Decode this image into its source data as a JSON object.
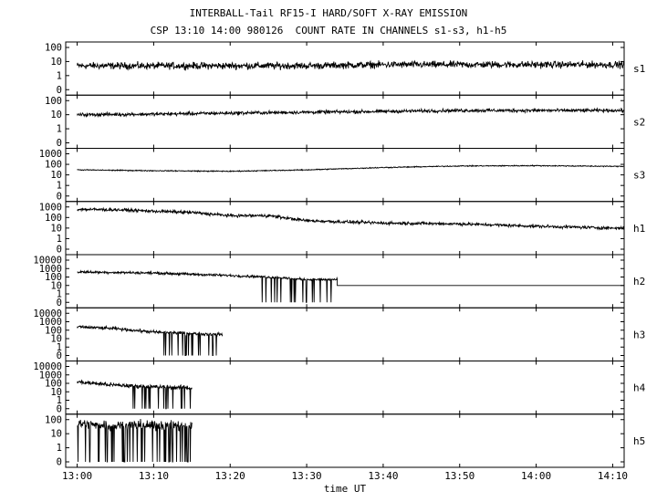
{
  "chart_data": {
    "type": "line",
    "title": "INTERBALL-Tail RF15-I HARD/SOFT X-RAY EMISSION",
    "subtitle": "CSP 13:10 14:00 980126  COUNT RATE IN CHANNELS s1-s3, h1-h5",
    "xlabel": "time UT",
    "x_ticks": [
      "13:00",
      "13:10",
      "13:20",
      "13:30",
      "13:40",
      "13:50",
      "14:00",
      "14:10"
    ],
    "xlim_minutes": [
      -1.5,
      71.5
    ],
    "y_scale": "log",
    "grid": false,
    "panels": [
      {
        "name": "s1",
        "yticks": [
          "100",
          "10",
          "1",
          "0"
        ],
        "series": {
          "x": [
            0,
            10,
            20,
            30,
            40,
            50,
            60,
            70
          ],
          "y": [
            5,
            5,
            5,
            5,
            6,
            6,
            6,
            6
          ]
        },
        "noise": 0.2,
        "end": 71.5
      },
      {
        "name": "s2",
        "yticks": [
          "100",
          "10",
          "1",
          "0"
        ],
        "series": {
          "x": [
            0,
            10,
            20,
            30,
            40,
            50,
            60,
            70
          ],
          "y": [
            10,
            11,
            13,
            15,
            17,
            20,
            20,
            20
          ]
        },
        "noise": 0.1,
        "end": 71.5
      },
      {
        "name": "s3",
        "yticks": [
          "1000",
          "100",
          "10",
          "1",
          "0"
        ],
        "series": {
          "x": [
            0,
            10,
            20,
            30,
            40,
            50,
            60,
            70
          ],
          "y": [
            30,
            25,
            22,
            30,
            50,
            70,
            75,
            65
          ]
        },
        "noise": 0.04,
        "end": 71.5
      },
      {
        "name": "h1",
        "yticks": [
          "1000",
          "100",
          "10",
          "1",
          "0"
        ],
        "series": {
          "x": [
            0,
            5,
            10,
            15,
            20,
            25,
            30,
            40,
            50,
            60,
            70
          ],
          "y": [
            600,
            550,
            400,
            300,
            150,
            150,
            50,
            30,
            25,
            15,
            10
          ]
        },
        "noise": 0.12,
        "end": 71.5
      },
      {
        "name": "h2",
        "yticks": [
          "10000",
          "1000",
          "100",
          "10",
          "1",
          "0"
        ],
        "series": {
          "x": [
            0,
            10,
            20,
            25,
            30,
            34
          ],
          "y": [
            400,
            300,
            150,
            100,
            50,
            50
          ]
        },
        "noise": 0.12,
        "end": 34,
        "after": 10
      },
      {
        "name": "h3",
        "yticks": [
          "10000",
          "1000",
          "100",
          "10",
          "1",
          "0"
        ],
        "series": {
          "x": [
            0,
            5,
            10,
            15,
            19
          ],
          "y": [
            250,
            150,
            60,
            40,
            30
          ]
        },
        "noise": 0.15,
        "end": 19
      },
      {
        "name": "h4",
        "yticks": [
          "10000",
          "1000",
          "100",
          "10",
          "1",
          "0"
        ],
        "series": {
          "x": [
            0,
            5,
            10,
            15
          ],
          "y": [
            150,
            60,
            40,
            30
          ]
        },
        "noise": 0.2,
        "end": 15
      },
      {
        "name": "h5",
        "yticks": [
          "100",
          "10",
          "1",
          "0"
        ],
        "series": {
          "x": [
            0,
            5,
            10,
            15
          ],
          "y": [
            50,
            40,
            40,
            35
          ]
        },
        "noise": 0.3,
        "end": 15
      }
    ]
  }
}
